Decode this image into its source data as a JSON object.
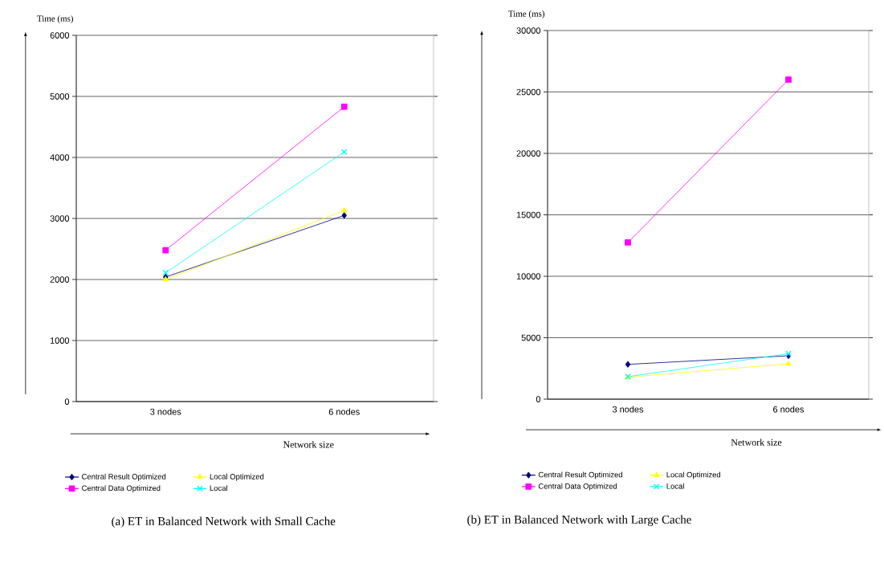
{
  "chart_data": [
    {
      "type": "line",
      "title": "(a) ET in Balanced Network with Small Cache",
      "xlabel": "Network size",
      "ylabel": "Time (ms)",
      "categories": [
        "3 nodes",
        "6 nodes"
      ],
      "ylim": [
        0,
        6000
      ],
      "yticks": [
        0,
        1000,
        2000,
        3000,
        4000,
        5000,
        6000
      ],
      "grid": "y",
      "legend": "bottom",
      "series": [
        {
          "name": "Central Result Optimized",
          "color": "#000080",
          "marker": "diamond",
          "values": [
            2040,
            3050
          ]
        },
        {
          "name": "Central Data Optimized",
          "color": "#ff00ff",
          "marker": "square",
          "values": [
            2480,
            4830
          ]
        },
        {
          "name": "Local Optimized",
          "color": "#ffff00",
          "marker": "triangle",
          "values": [
            2000,
            3130
          ]
        },
        {
          "name": "Local",
          "color": "#00ffff",
          "marker": "cross",
          "values": [
            2110,
            4090
          ]
        }
      ]
    },
    {
      "type": "line",
      "title": "(b) ET in Balanced Network with Large Cache",
      "xlabel": "Network size",
      "ylabel": "Time (ms)",
      "categories": [
        "3 nodes",
        "6 nodes"
      ],
      "ylim": [
        0,
        30000
      ],
      "yticks": [
        0,
        5000,
        10000,
        15000,
        20000,
        25000,
        30000
      ],
      "grid": "y",
      "legend": "bottom",
      "series": [
        {
          "name": "Central Result Optimized",
          "color": "#000080",
          "marker": "diamond",
          "values": [
            2830,
            3530
          ]
        },
        {
          "name": "Central Data Optimized",
          "color": "#ff00ff",
          "marker": "square",
          "values": [
            12750,
            26000
          ]
        },
        {
          "name": "Local Optimized",
          "color": "#ffff00",
          "marker": "triangle",
          "values": [
            1790,
            2880
          ]
        },
        {
          "name": "Local",
          "color": "#00ffff",
          "marker": "cross",
          "values": [
            1830,
            3700
          ]
        }
      ]
    }
  ]
}
